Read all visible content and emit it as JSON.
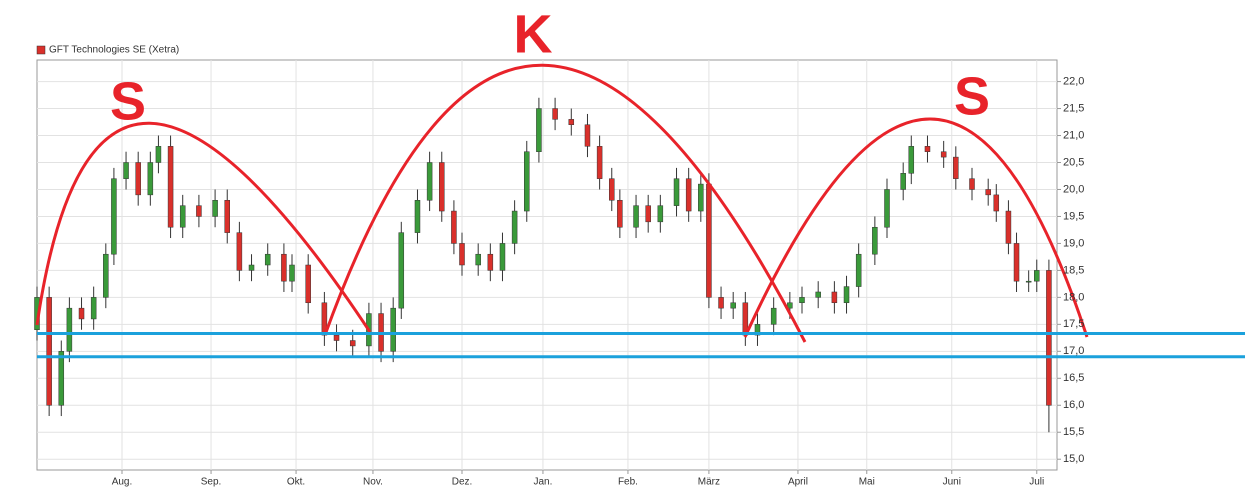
{
  "chart_data": {
    "type": "candlestick",
    "legend": "GFT Technologies SE (Xetra)",
    "legend_color": "#d9302b",
    "annotations": [
      "S",
      "K",
      "S"
    ],
    "up_color": "#3a9a3a",
    "down_color": "#d9302b",
    "support_lines": [
      17.33,
      16.9
    ],
    "support_color": "#1ba1dc",
    "xlim": [
      0,
      252
    ],
    "ylim": [
      14.8,
      22.4
    ],
    "grid": true,
    "xticks": [
      {
        "value": 21,
        "label": "Aug."
      },
      {
        "value": 43,
        "label": "Sep."
      },
      {
        "value": 64,
        "label": "Okt."
      },
      {
        "value": 83,
        "label": "Nov."
      },
      {
        "value": 105,
        "label": "Dez."
      },
      {
        "value": 125,
        "label": "Jan."
      },
      {
        "value": 146,
        "label": "Feb."
      },
      {
        "value": 166,
        "label": "März"
      },
      {
        "value": 188,
        "label": "April"
      },
      {
        "value": 205,
        "label": "Mai"
      },
      {
        "value": 226,
        "label": "Juni"
      },
      {
        "value": 247,
        "label": "Juli"
      }
    ],
    "yticks": [
      {
        "value": 15,
        "label": "15,0"
      },
      {
        "value": 15.5,
        "label": "15,5"
      },
      {
        "value": 16,
        "label": "16,0"
      },
      {
        "value": 16.5,
        "label": "16,5"
      },
      {
        "value": 17,
        "label": "17,0"
      },
      {
        "value": 17.5,
        "label": "17,5"
      },
      {
        "value": 18,
        "label": "18,0"
      },
      {
        "value": 18.5,
        "label": "18,5"
      },
      {
        "value": 19,
        "label": "19,0"
      },
      {
        "value": 19.5,
        "label": "19,5"
      },
      {
        "value": 20,
        "label": "20,0"
      },
      {
        "value": 20.5,
        "label": "20,5"
      },
      {
        "value": 21,
        "label": "21,0"
      },
      {
        "value": 21.5,
        "label": "21,5"
      },
      {
        "value": 22,
        "label": "22,0"
      }
    ],
    "x": [
      0,
      3,
      6,
      8,
      11,
      14,
      17,
      19,
      22,
      25,
      28,
      30,
      33,
      36,
      40,
      44,
      47,
      50,
      53,
      57,
      61,
      63,
      67,
      71,
      74,
      78,
      82,
      85,
      88,
      90,
      94,
      97,
      100,
      103,
      105,
      109,
      112,
      115,
      118,
      121,
      124,
      128,
      132,
      136,
      139,
      142,
      144,
      148,
      151,
      154,
      158,
      161,
      164,
      166,
      169,
      172,
      175,
      178,
      182,
      186,
      189,
      193,
      197,
      200,
      203,
      207,
      210,
      214,
      216,
      220,
      224,
      227,
      231,
      235,
      237,
      240,
      242,
      245,
      247,
      250
    ],
    "open": [
      17.4,
      18.0,
      16.0,
      17.0,
      17.8,
      17.6,
      18.0,
      18.8,
      20.2,
      20.5,
      19.9,
      20.5,
      20.8,
      19.3,
      19.7,
      19.5,
      19.8,
      19.2,
      18.5,
      18.6,
      18.8,
      18.3,
      18.6,
      17.9,
      17.3,
      17.2,
      17.1,
      17.7,
      17.0,
      17.8,
      19.2,
      19.8,
      20.5,
      19.6,
      19.0,
      18.6,
      18.8,
      18.5,
      19.0,
      19.6,
      20.7,
      21.5,
      21.3,
      21.2,
      20.8,
      20.2,
      19.8,
      19.3,
      19.7,
      19.4,
      19.7,
      20.2,
      19.6,
      20.1,
      18.0,
      17.8,
      17.9,
      17.3,
      17.5,
      17.8,
      17.9,
      18.0,
      18.1,
      17.9,
      18.2,
      18.8,
      19.3,
      20.0,
      20.3,
      20.8,
      20.7,
      20.6,
      20.2,
      20.0,
      19.9,
      19.6,
      19.0,
      18.3,
      18.3,
      18.5
    ],
    "high": [
      18.2,
      18.2,
      17.2,
      18.0,
      18.0,
      18.2,
      19.0,
      20.4,
      20.7,
      20.7,
      20.7,
      21.0,
      21.0,
      19.9,
      19.9,
      20.0,
      20.0,
      19.4,
      18.8,
      19.0,
      19.0,
      18.8,
      18.8,
      18.1,
      17.5,
      17.4,
      17.9,
      17.9,
      18.0,
      19.4,
      20.0,
      20.7,
      20.7,
      19.8,
      19.2,
      19.0,
      19.0,
      19.2,
      19.8,
      20.9,
      21.7,
      21.7,
      21.5,
      21.4,
      21.0,
      20.4,
      20.0,
      19.9,
      19.9,
      19.9,
      20.4,
      20.4,
      20.3,
      20.3,
      18.2,
      18.1,
      18.1,
      17.7,
      18.0,
      18.1,
      18.2,
      18.3,
      18.3,
      18.4,
      19.0,
      19.5,
      20.2,
      20.5,
      21.0,
      21.0,
      20.9,
      20.8,
      20.4,
      20.2,
      20.1,
      19.8,
      19.2,
      18.5,
      18.7,
      18.7
    ],
    "low": [
      17.2,
      15.8,
      15.8,
      16.8,
      17.4,
      17.4,
      17.8,
      18.6,
      20.0,
      19.7,
      19.7,
      20.3,
      19.1,
      19.1,
      19.3,
      19.3,
      19.0,
      18.3,
      18.3,
      18.4,
      18.1,
      18.1,
      17.7,
      17.1,
      17.0,
      16.9,
      16.9,
      16.8,
      16.8,
      17.6,
      19.0,
      19.6,
      19.4,
      18.8,
      18.4,
      18.4,
      18.3,
      18.3,
      18.8,
      19.4,
      20.5,
      21.1,
      21.0,
      20.6,
      20.0,
      19.6,
      19.1,
      19.1,
      19.2,
      19.2,
      19.5,
      19.4,
      19.4,
      17.8,
      17.6,
      17.6,
      17.1,
      17.1,
      17.3,
      17.6,
      17.7,
      17.8,
      17.7,
      17.7,
      18.0,
      18.6,
      19.1,
      19.8,
      20.1,
      20.5,
      20.4,
      20.0,
      19.8,
      19.7,
      19.4,
      18.8,
      18.1,
      18.1,
      18.1,
      15.5
    ],
    "close": [
      18.0,
      16.0,
      17.0,
      17.8,
      17.6,
      18.0,
      18.8,
      20.2,
      20.5,
      19.9,
      20.5,
      20.8,
      19.3,
      19.7,
      19.5,
      19.8,
      19.2,
      18.5,
      18.6,
      18.8,
      18.3,
      18.6,
      17.9,
      17.3,
      17.2,
      17.1,
      17.7,
      17.0,
      17.8,
      19.2,
      19.8,
      20.5,
      19.6,
      19.0,
      18.6,
      18.8,
      18.5,
      19.0,
      19.6,
      20.7,
      21.5,
      21.3,
      21.2,
      20.8,
      20.2,
      19.8,
      19.3,
      19.7,
      19.4,
      19.7,
      20.2,
      19.6,
      20.1,
      18.0,
      17.8,
      17.9,
      17.3,
      17.5,
      17.8,
      17.9,
      18.0,
      18.1,
      17.9,
      18.2,
      18.8,
      19.3,
      20.0,
      20.3,
      20.8,
      20.7,
      20.6,
      20.2,
      20.0,
      19.9,
      19.6,
      19.0,
      18.3,
      18.3,
      18.5,
      16.0
    ]
  }
}
